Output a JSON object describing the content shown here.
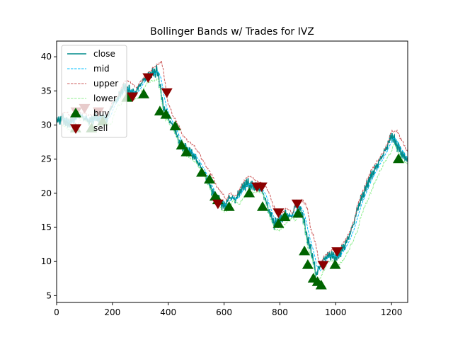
{
  "chart_data": {
    "type": "line",
    "title": "Bollinger Bands w/ Trades for IVZ",
    "xlabel": "",
    "ylabel": "",
    "xlim": [
      0,
      1258
    ],
    "ylim": [
      4,
      42.3
    ],
    "xticks": [
      0,
      200,
      400,
      600,
      800,
      1000,
      1200
    ],
    "yticks": [
      5,
      10,
      15,
      20,
      25,
      30,
      35,
      40
    ],
    "grid": false,
    "legend": "top-left",
    "colors": {
      "close": "#008b8b",
      "mid": "#00bfff",
      "upper": "#cd5c5c",
      "lower": "#90ee90",
      "buy": "#006400",
      "sell": "#8b0000"
    },
    "legend_labels": [
      "close",
      "mid",
      "upper",
      "lower",
      "buy",
      "sell"
    ],
    "close": {
      "x": [
        0,
        20,
        40,
        60,
        80,
        100,
        120,
        140,
        160,
        180,
        200,
        220,
        240,
        260,
        280,
        300,
        320,
        340,
        360,
        370,
        380,
        400,
        420,
        440,
        460,
        480,
        500,
        520,
        540,
        560,
        580,
        600,
        620,
        640,
        660,
        680,
        700,
        720,
        740,
        760,
        780,
        800,
        820,
        840,
        860,
        880,
        900,
        910,
        920,
        930,
        940,
        960,
        980,
        1000,
        1020,
        1040,
        1060,
        1080,
        1100,
        1120,
        1140,
        1160,
        1180,
        1200,
        1220,
        1240,
        1258
      ],
      "y": [
        30.5,
        31.0,
        30.2,
        30.8,
        31.5,
        31.0,
        30.5,
        31.2,
        31.0,
        30.8,
        33.0,
        34.0,
        35.5,
        35.0,
        34.5,
        36.0,
        37.0,
        37.5,
        38.0,
        36.0,
        33.0,
        31.0,
        29.5,
        27.5,
        26.5,
        26.0,
        25.0,
        23.5,
        22.0,
        20.0,
        19.0,
        18.0,
        19.5,
        19.0,
        20.5,
        21.5,
        21.0,
        21.0,
        20.0,
        17.5,
        15.5,
        16.0,
        17.0,
        16.5,
        18.5,
        17.0,
        13.0,
        12.0,
        10.0,
        8.0,
        9.0,
        10.5,
        11.0,
        10.5,
        11.5,
        13.0,
        15.0,
        18.0,
        20.0,
        22.0,
        23.5,
        25.0,
        26.5,
        28.5,
        27.0,
        25.5,
        25.0
      ]
    },
    "buy": {
      "x": [
        68,
        125,
        165,
        252,
        312,
        370,
        392,
        425,
        448,
        465,
        520,
        548,
        568,
        578,
        618,
        690,
        738,
        795,
        818,
        865,
        888,
        900,
        920,
        935,
        948,
        998,
        1225
      ],
      "y": [
        29.5,
        29.5,
        30.5,
        34.0,
        34.5,
        32.0,
        31.5,
        29.8,
        27.0,
        26.0,
        23.0,
        22.0,
        19.5,
        19.0,
        18.0,
        20.0,
        18.0,
        15.5,
        16.5,
        17.0,
        11.5,
        9.5,
        7.5,
        7.0,
        6.5,
        9.5,
        25.0
      ]
    },
    "sell": {
      "x": [
        70,
        100,
        150,
        272,
        328,
        395,
        578,
        718,
        735,
        795,
        862,
        955,
        1005
      ],
      "y": [
        32.0,
        32.5,
        32.0,
        34.2,
        37.0,
        34.8,
        18.5,
        21.0,
        21.0,
        17.2,
        18.5,
        9.5,
        11.5
      ]
    }
  }
}
